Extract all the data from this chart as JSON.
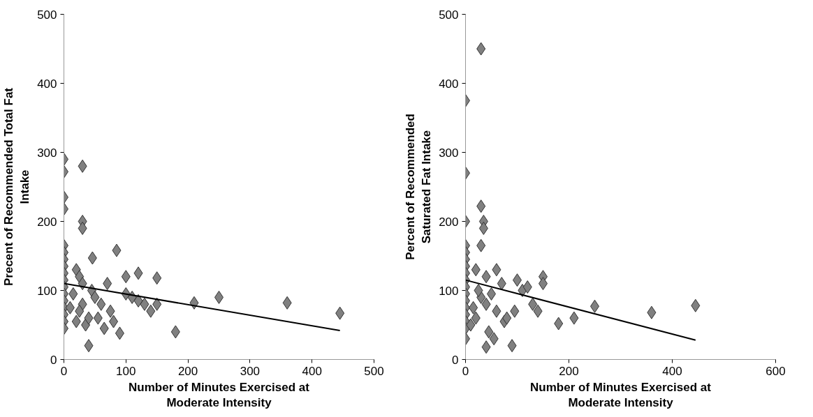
{
  "chart_data": [
    {
      "type": "scatter",
      "xlabel": "Number of Minutes Exercised at\nModerate Intensity",
      "ylabel": "Precent of Recommended Total Fat\nIntake",
      "xlim": [
        0,
        500
      ],
      "ylim": [
        0,
        500
      ],
      "xticks": [
        0,
        100,
        200,
        300,
        400,
        500
      ],
      "yticks": [
        0,
        100,
        200,
        300,
        400,
        500
      ],
      "grid": false,
      "series": [
        {
          "marker": "diamond",
          "color": "#808080",
          "x": [
            0,
            0,
            0,
            0,
            0,
            0,
            0,
            0,
            0,
            0,
            0,
            0,
            0,
            0,
            0,
            0,
            0,
            30,
            30,
            30,
            46,
            85,
            100,
            120,
            150,
            210,
            250,
            360,
            445,
            180,
            90,
            40,
            35,
            20,
            25,
            30,
            45,
            50,
            60,
            55,
            70,
            75,
            80,
            65,
            110,
            120,
            130,
            140,
            150,
            100,
            30,
            40,
            25,
            15,
            10,
            20
          ],
          "values": [
            290,
            272,
            235,
            218,
            165,
            155,
            145,
            135,
            125,
            115,
            105,
            95,
            85,
            75,
            65,
            55,
            45,
            280,
            200,
            190,
            147,
            158,
            120,
            125,
            118,
            82,
            90,
            82,
            67,
            40,
            38,
            20,
            50,
            130,
            120,
            110,
            100,
            90,
            80,
            60,
            110,
            70,
            55,
            45,
            90,
            85,
            80,
            70,
            80,
            95,
            80,
            60,
            70,
            95,
            75,
            55
          ]
        },
        {
          "type": "line",
          "color": "#000000",
          "x": [
            0,
            445
          ],
          "values": [
            110,
            42
          ]
        }
      ]
    },
    {
      "type": "scatter",
      "xlabel": "Number of Minutes Exercised at\nModerate Intensity",
      "ylabel": "Percent of Recommended\nSaturated Fat Intake",
      "xlim": [
        0,
        600
      ],
      "ylim": [
        0,
        500
      ],
      "xticks": [
        0,
        200,
        400,
        600
      ],
      "yticks": [
        0,
        100,
        200,
        300,
        400,
        500
      ],
      "grid": false,
      "series": [
        {
          "marker": "diamond",
          "color": "#808080",
          "x": [
            0,
            0,
            0,
            0,
            0,
            0,
            0,
            0,
            0,
            0,
            0,
            0,
            0,
            0,
            0,
            0,
            0,
            30,
            30,
            35,
            35,
            30,
            250,
            360,
            445,
            210,
            180,
            150,
            150,
            90,
            40,
            20,
            40,
            60,
            70,
            100,
            110,
            120,
            130,
            140,
            60,
            75,
            80,
            95,
            30,
            50,
            20,
            45,
            55,
            40,
            25,
            15,
            10
          ],
          "values": [
            375,
            270,
            200,
            165,
            155,
            145,
            135,
            125,
            115,
            105,
            95,
            85,
            75,
            65,
            55,
            45,
            30,
            450,
            222,
            200,
            190,
            165,
            77,
            68,
            78,
            60,
            52,
            120,
            110,
            20,
            18,
            130,
            120,
            130,
            110,
            115,
            100,
            105,
            80,
            70,
            70,
            55,
            60,
            70,
            90,
            95,
            60,
            40,
            30,
            80,
            100,
            75,
            50
          ]
        },
        {
          "type": "line",
          "color": "#000000",
          "x": [
            0,
            445
          ],
          "values": [
            115,
            28
          ]
        }
      ]
    }
  ]
}
